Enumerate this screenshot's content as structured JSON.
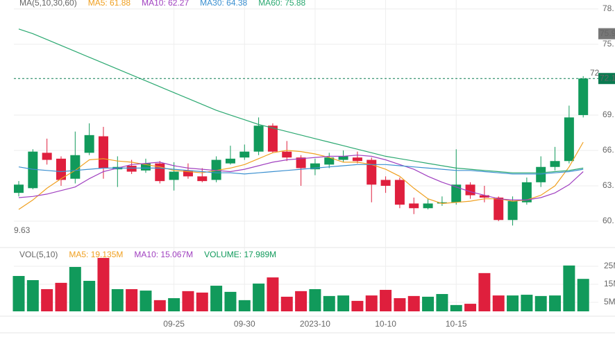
{
  "chart_data": {
    "type": "candlestick",
    "legend_title": "MA(5,10,30,60)",
    "categories": [
      null,
      null,
      null,
      null,
      null,
      null,
      null,
      null,
      null,
      null,
      null,
      "09-25",
      null,
      null,
      null,
      null,
      "09-30",
      null,
      null,
      null,
      null,
      "2023-10",
      null,
      null,
      null,
      null,
      "10-10",
      null,
      null,
      null,
      null,
      "10-15",
      null,
      null,
      null,
      null,
      null,
      null,
      null,
      null,
      null
    ],
    "open": [
      62.4,
      62.8,
      65.8,
      65.3,
      63.6,
      65.8,
      67.2,
      64.4,
      64.7,
      64.3,
      64.9,
      63.5,
      64.3,
      63.8,
      63.5,
      64.9,
      65.4,
      65.9,
      68.1,
      65.9,
      65.4,
      64.4,
      64.8,
      65.2,
      65.4,
      65.2,
      63.5,
      63.5,
      61.5,
      61.1,
      61.5,
      61.6,
      63.1,
      62.2,
      62.0,
      60.1,
      61.6,
      63.3,
      64.6,
      65.1,
      69.0
    ],
    "high": [
      63.4,
      66.1,
      67.0,
      65.5,
      67.6,
      68.3,
      68.0,
      65.5,
      65.2,
      65.3,
      65.1,
      65.0,
      64.9,
      64.5,
      65.5,
      66.4,
      66.5,
      68.8,
      68.3,
      66.8,
      65.6,
      65.3,
      65.8,
      66.0,
      65.9,
      65.4,
      63.8,
      63.7,
      62.0,
      61.9,
      62.1,
      66.1,
      63.3,
      63.0,
      62.1,
      62.1,
      63.7,
      65.5,
      66.3,
      69.8,
      72.3
    ],
    "low": [
      62.1,
      62.7,
      64.8,
      63.0,
      63.2,
      65.6,
      63.6,
      62.9,
      64.0,
      64.1,
      63.2,
      62.6,
      63.6,
      63.3,
      63.3,
      64.8,
      65.2,
      65.6,
      65.8,
      65.1,
      63.0,
      63.9,
      64.5,
      65.0,
      64.9,
      61.6,
      62.4,
      61.1,
      60.6,
      61.0,
      61.3,
      61.4,
      61.9,
      61.6,
      60.0,
      59.63,
      61.4,
      62.9,
      64.3,
      64.9,
      68.8
    ],
    "close": [
      63.1,
      65.9,
      65.2,
      63.5,
      65.6,
      67.3,
      64.5,
      64.6,
      64.2,
      64.9,
      63.4,
      64.2,
      63.8,
      63.4,
      65.2,
      65.3,
      65.9,
      68.1,
      65.9,
      65.4,
      64.5,
      64.9,
      65.4,
      65.5,
      65.1,
      63.1,
      63.0,
      61.4,
      61.1,
      61.5,
      61.6,
      63.1,
      62.2,
      62.0,
      60.1,
      61.7,
      63.3,
      64.6,
      65.1,
      68.8,
      72.1
    ],
    "up_color": "#119a5b",
    "down_color": "#df1f3d",
    "series": [
      {
        "name": "MA5: 61.88",
        "color": "#f0a020",
        "values": [
          61.0,
          61.8,
          62.8,
          63.6,
          64.3,
          65.2,
          65.3,
          65.1,
          65.0,
          64.8,
          64.6,
          64.3,
          64.2,
          64.1,
          64.3,
          64.5,
          64.8,
          65.3,
          65.8,
          66.0,
          65.9,
          65.7,
          65.4,
          65.0,
          65.0,
          64.8,
          64.4,
          63.8,
          62.8,
          61.9,
          61.5,
          61.6,
          61.7,
          61.9,
          61.9,
          61.7,
          61.8,
          62.2,
          63.0,
          64.6,
          66.7
        ]
      },
      {
        "name": "MA10: 62.27",
        "color": "#a040c0",
        "values": [
          62.0,
          62.1,
          62.3,
          62.6,
          62.9,
          63.6,
          64.2,
          64.5,
          64.8,
          64.9,
          65.0,
          64.7,
          64.5,
          64.4,
          64.3,
          64.2,
          64.4,
          64.7,
          65.0,
          65.2,
          65.3,
          65.4,
          65.5,
          65.5,
          65.6,
          65.5,
          65.2,
          64.8,
          64.4,
          63.8,
          63.3,
          62.9,
          62.5,
          62.2,
          61.9,
          61.8,
          61.8,
          62.0,
          62.4,
          63.1,
          64.2
        ]
      },
      {
        "name": "MA30: 64.38",
        "color": "#3a8fd0",
        "values": [
          64.6,
          64.4,
          64.3,
          64.2,
          64.3,
          64.4,
          64.5,
          64.5,
          64.5,
          64.5,
          64.5,
          64.4,
          64.3,
          64.2,
          64.1,
          64.1,
          64.0,
          64.1,
          64.2,
          64.3,
          64.4,
          64.5,
          64.6,
          64.7,
          64.8,
          64.8,
          64.8,
          64.7,
          64.6,
          64.5,
          64.4,
          64.3,
          64.3,
          64.2,
          64.1,
          64.0,
          64.0,
          64.0,
          64.1,
          64.2,
          64.4
        ]
      },
      {
        "name": "MA60: 75.88",
        "color": "#2aa870",
        "values": [
          76.3,
          75.9,
          75.4,
          74.9,
          74.4,
          73.9,
          73.4,
          72.9,
          72.4,
          71.9,
          71.4,
          70.9,
          70.4,
          69.9,
          69.4,
          69.0,
          68.6,
          68.2,
          67.9,
          67.6,
          67.3,
          67.0,
          66.7,
          66.4,
          66.1,
          65.8,
          65.5,
          65.3,
          65.1,
          64.9,
          64.7,
          64.5,
          64.4,
          64.3,
          64.2,
          64.1,
          64.1,
          64.1,
          64.2,
          64.3,
          64.5
        ]
      }
    ],
    "ylim": [
      57.88,
      78.76
    ],
    "yticks": [
      {
        "value": 78,
        "label": "78."
      },
      {
        "value": 75,
        "label": "75."
      },
      {
        "value": 69,
        "label": "69."
      },
      {
        "value": 66,
        "label": "66."
      },
      {
        "value": 63,
        "label": "63."
      },
      {
        "value": 60,
        "label": "60."
      }
    ],
    "price_tags": [
      75.9,
      72.1
    ],
    "high_label": "72",
    "low_label": "9.63",
    "grid": true,
    "volume": {
      "legend_title": "VOL(5,10)",
      "legend_entries": [
        {
          "text": "MA5: 19.135M",
          "color": "#f0a020"
        },
        {
          "text": "MA10: 15.067M",
          "color": "#a040c0"
        },
        {
          "text": "VOLUME: 17.989M",
          "color": "#119a5b"
        }
      ],
      "values": [
        19.6,
        17.3,
        12.3,
        15.8,
        24.6,
        16.9,
        29.6,
        12.3,
        12.3,
        11.5,
        6.2,
        7.3,
        11.2,
        10.4,
        14.2,
        10.8,
        6.2,
        15.4,
        18.8,
        8.1,
        11.2,
        12.3,
        8.5,
        8.8,
        5.8,
        8.8,
        11.9,
        7.3,
        8.5,
        8.1,
        9.6,
        3.5,
        4.2,
        21.2,
        8.8,
        8.8,
        9.2,
        8.5,
        8.8,
        25.4,
        17.989
      ],
      "ylim": [
        0,
        34.2
      ],
      "yticks": [
        {
          "value": 25,
          "label": "25M"
        },
        {
          "value": 15,
          "label": "15M"
        },
        {
          "value": 5,
          "label": "5M"
        }
      ]
    }
  }
}
